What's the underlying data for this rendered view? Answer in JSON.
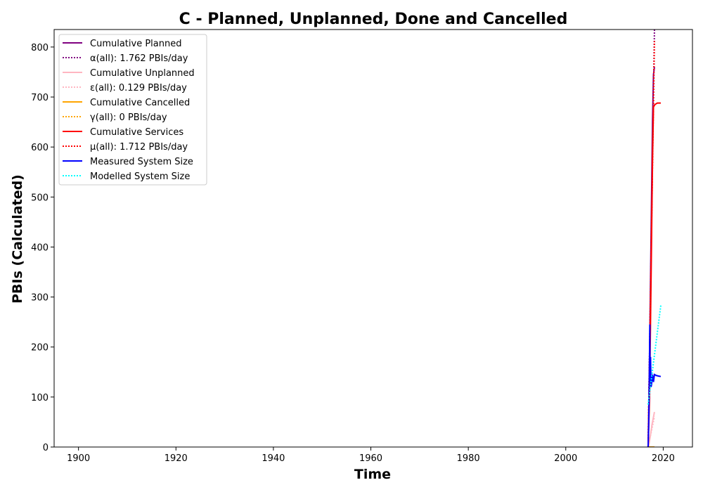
{
  "chart_data": {
    "type": "line",
    "title": "C - Planned, Unplanned, Done  and Cancelled",
    "xlabel": "Time",
    "ylabel": "PBIs (Calculated)",
    "xlim": [
      1895,
      2026
    ],
    "ylim": [
      0,
      835
    ],
    "xticks": [
      1900,
      1920,
      1940,
      1960,
      1980,
      2000,
      2020
    ],
    "yticks": [
      0,
      100,
      200,
      300,
      400,
      500,
      600,
      700,
      800
    ],
    "grid": false,
    "legend_position": "top-left",
    "series": [
      {
        "name": "Cumulative Planned",
        "color": "#800080",
        "style": "solid",
        "x": [
          2016.9,
          2017.2,
          2017.5,
          2017.8,
          2018.0,
          2018.2
        ],
        "y": [
          0,
          180,
          420,
          650,
          745,
          760
        ]
      },
      {
        "name": "α(all): 1.762 PBIs/day",
        "color": "#800080",
        "style": "dotted",
        "x": [
          2016.9,
          2018.2
        ],
        "y": [
          0,
          835
        ]
      },
      {
        "name": "Cumulative Unplanned",
        "color": "#ffb6c1",
        "style": "solid",
        "x": [
          2017.0,
          2017.4,
          2017.7,
          2018.0,
          2018.2
        ],
        "y": [
          0,
          25,
          45,
          60,
          70
        ]
      },
      {
        "name": "ε(all): 0.129 PBIs/day",
        "color": "#ffb6c1",
        "style": "dotted",
        "x": [
          2016.9,
          2018.2
        ],
        "y": [
          0,
          61
        ]
      },
      {
        "name": "Cumulative Cancelled",
        "color": "#ffa500",
        "style": "solid",
        "x": [
          2016.9,
          2018.2
        ],
        "y": [
          0,
          0
        ]
      },
      {
        "name": "γ(all): 0 PBIs/day",
        "color": "#ffa500",
        "style": "dotted",
        "x": [
          2016.9,
          2018.2
        ],
        "y": [
          0,
          0
        ]
      },
      {
        "name": "Cumulative Services",
        "color": "#ff0000",
        "style": "solid",
        "x": [
          2016.9,
          2017.2,
          2017.5,
          2017.8,
          2018.0,
          2018.3,
          2018.8,
          2019.5
        ],
        "y": [
          0,
          100,
          330,
          570,
          680,
          685,
          688,
          688
        ]
      },
      {
        "name": "μ(all): 1.712 PBIs/day",
        "color": "#ff0000",
        "style": "dotted",
        "x": [
          2016.9,
          2018.2
        ],
        "y": [
          0,
          812
        ]
      },
      {
        "name": "Measured System Size",
        "color": "#0000ff",
        "style": "solid",
        "x": [
          2016.9,
          2017.0,
          2017.1,
          2017.25,
          2017.3,
          2017.4,
          2017.5,
          2017.6,
          2017.8,
          2018.0,
          2018.2,
          2018.6,
          2019.0,
          2019.5
        ],
        "y": [
          0,
          35,
          95,
          245,
          130,
          180,
          120,
          125,
          145,
          130,
          145,
          143,
          142,
          141
        ]
      },
      {
        "name": "Modelled System Size",
        "color": "#00ffff",
        "style": "dotted",
        "x": [
          2016.9,
          2019.5
        ],
        "y": [
          85,
          283
        ]
      }
    ]
  }
}
